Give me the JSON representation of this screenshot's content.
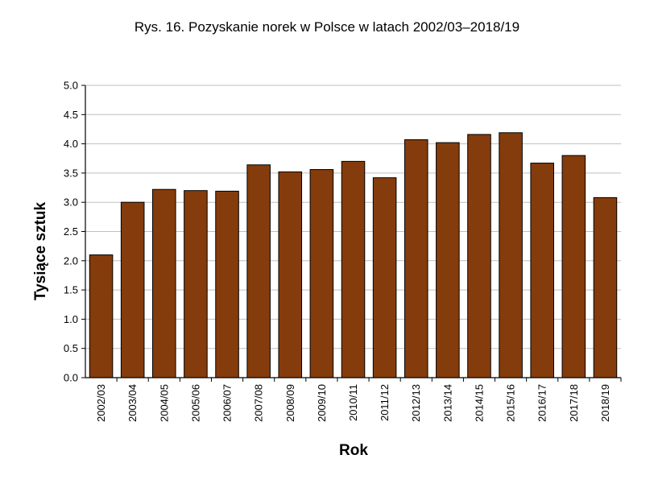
{
  "chart_data": {
    "type": "bar",
    "title": "Rys. 16. Pozyskanie norek w Polsce w latach 2002/03–2018/19",
    "xlabel": "Rok",
    "ylabel": "Tysiące sztuk",
    "categories": [
      "2002/03",
      "2003/04",
      "2004/05",
      "2005/06",
      "2006/07",
      "2007/08",
      "2008/09",
      "2009/10",
      "2010/11",
      "2011/12",
      "2012/13",
      "2013/14",
      "2014/15",
      "2015/16",
      "2016/17",
      "2017/18",
      "2018/19"
    ],
    "values": [
      2.1,
      3.0,
      3.22,
      3.2,
      3.19,
      3.64,
      3.52,
      3.56,
      3.7,
      3.42,
      4.07,
      4.02,
      4.16,
      4.19,
      3.67,
      3.8,
      3.08
    ],
    "ylim": [
      0,
      5.0
    ],
    "yticks": [
      "0.0",
      "0.5",
      "1.0",
      "1.5",
      "2.0",
      "2.5",
      "3.0",
      "3.5",
      "4.0",
      "4.5",
      "5.0"
    ],
    "grid": true,
    "bar_color": "#843c0c",
    "bar_edge_color": "#000000",
    "grid_color": "#bfbfbf"
  }
}
